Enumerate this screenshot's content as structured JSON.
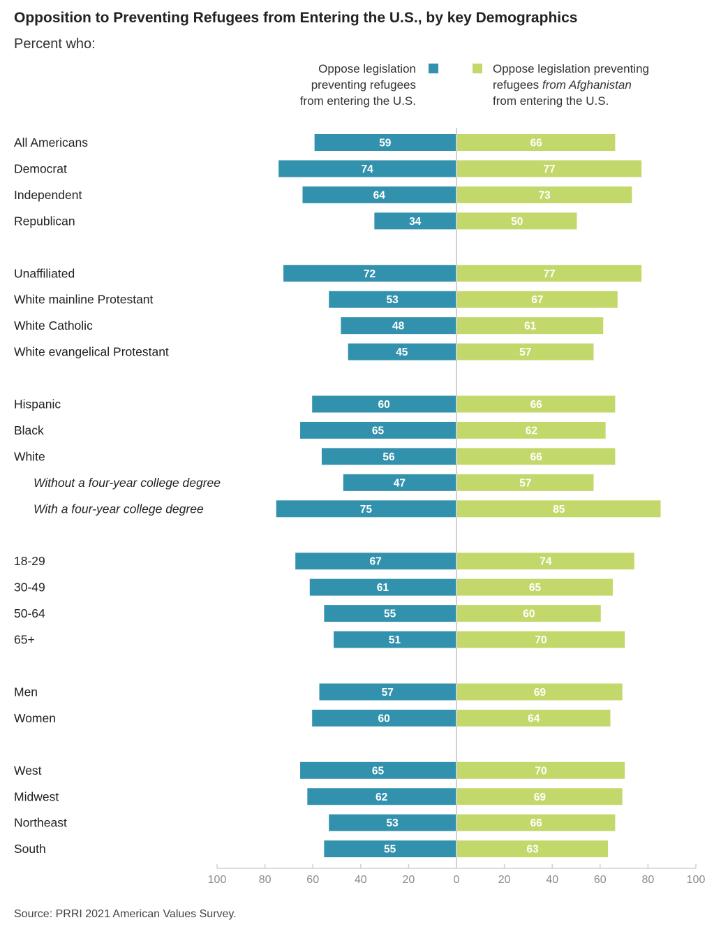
{
  "title": "Opposition to Preventing Refugees from Entering the U.S., by key Demographics",
  "subtitle": "Percent who:",
  "source": "Source: PRRI 2021 American Values Survey.",
  "colors": {
    "left_series": "#3291ad",
    "right_series": "#c3d86a",
    "axis": "#d0d0d0"
  },
  "legend": {
    "left": {
      "lines": [
        "Oppose legislation",
        "preventing refugees",
        "from entering the U.S."
      ]
    },
    "right": {
      "line1": "Oppose legislation preventing",
      "line2_a": "refugees ",
      "line2_b": "from Afghanistan",
      "line3": "from entering the U.S."
    }
  },
  "chart_data": {
    "type": "bar",
    "orientation": "horizontal-diverging",
    "title": "Opposition to Preventing Refugees from Entering the U.S., by key Demographics",
    "subtitle": "Percent who:",
    "xlim": [
      -100,
      100
    ],
    "ticks": [
      "100",
      "80",
      "60",
      "40",
      "20",
      "0",
      "20",
      "40",
      "60",
      "80",
      "100"
    ],
    "series": [
      {
        "name": "Oppose legislation preventing refugees from entering the U.S.",
        "side": "left"
      },
      {
        "name": "Oppose legislation preventing refugees from Afghanistan from entering the U.S.",
        "side": "right"
      }
    ],
    "groups": [
      {
        "rows": [
          {
            "label": "All Americans",
            "left": 59,
            "right": 66
          },
          {
            "label": "Democrat",
            "left": 74,
            "right": 77
          },
          {
            "label": "Independent",
            "left": 64,
            "right": 73
          },
          {
            "label": "Republican",
            "left": 34,
            "right": 50
          }
        ]
      },
      {
        "rows": [
          {
            "label": "Unaffiliated",
            "left": 72,
            "right": 77
          },
          {
            "label": "White mainline Protestant",
            "left": 53,
            "right": 67
          },
          {
            "label": "White Catholic",
            "left": 48,
            "right": 61
          },
          {
            "label": "White evangelical Protestant",
            "left": 45,
            "right": 57
          }
        ]
      },
      {
        "rows": [
          {
            "label": "Hispanic",
            "left": 60,
            "right": 66
          },
          {
            "label": "Black",
            "left": 65,
            "right": 62
          },
          {
            "label": "White",
            "left": 56,
            "right": 66
          },
          {
            "label": "Without a four-year college degree",
            "left": 47,
            "right": 57,
            "italic": true
          },
          {
            "label": "With a four-year college degree",
            "left": 75,
            "right": 85,
            "italic": true
          }
        ]
      },
      {
        "rows": [
          {
            "label": "18-29",
            "left": 67,
            "right": 74
          },
          {
            "label": "30-49",
            "left": 61,
            "right": 65
          },
          {
            "label": "50-64",
            "left": 55,
            "right": 60
          },
          {
            "label": "65+",
            "left": 51,
            "right": 70
          }
        ]
      },
      {
        "rows": [
          {
            "label": "Men",
            "left": 57,
            "right": 69
          },
          {
            "label": "Women",
            "left": 60,
            "right": 64
          }
        ]
      },
      {
        "rows": [
          {
            "label": "West",
            "left": 65,
            "right": 70
          },
          {
            "label": "Midwest",
            "left": 62,
            "right": 69
          },
          {
            "label": "Northeast",
            "left": 53,
            "right": 66
          },
          {
            "label": "South",
            "left": 55,
            "right": 63
          }
        ]
      }
    ]
  }
}
